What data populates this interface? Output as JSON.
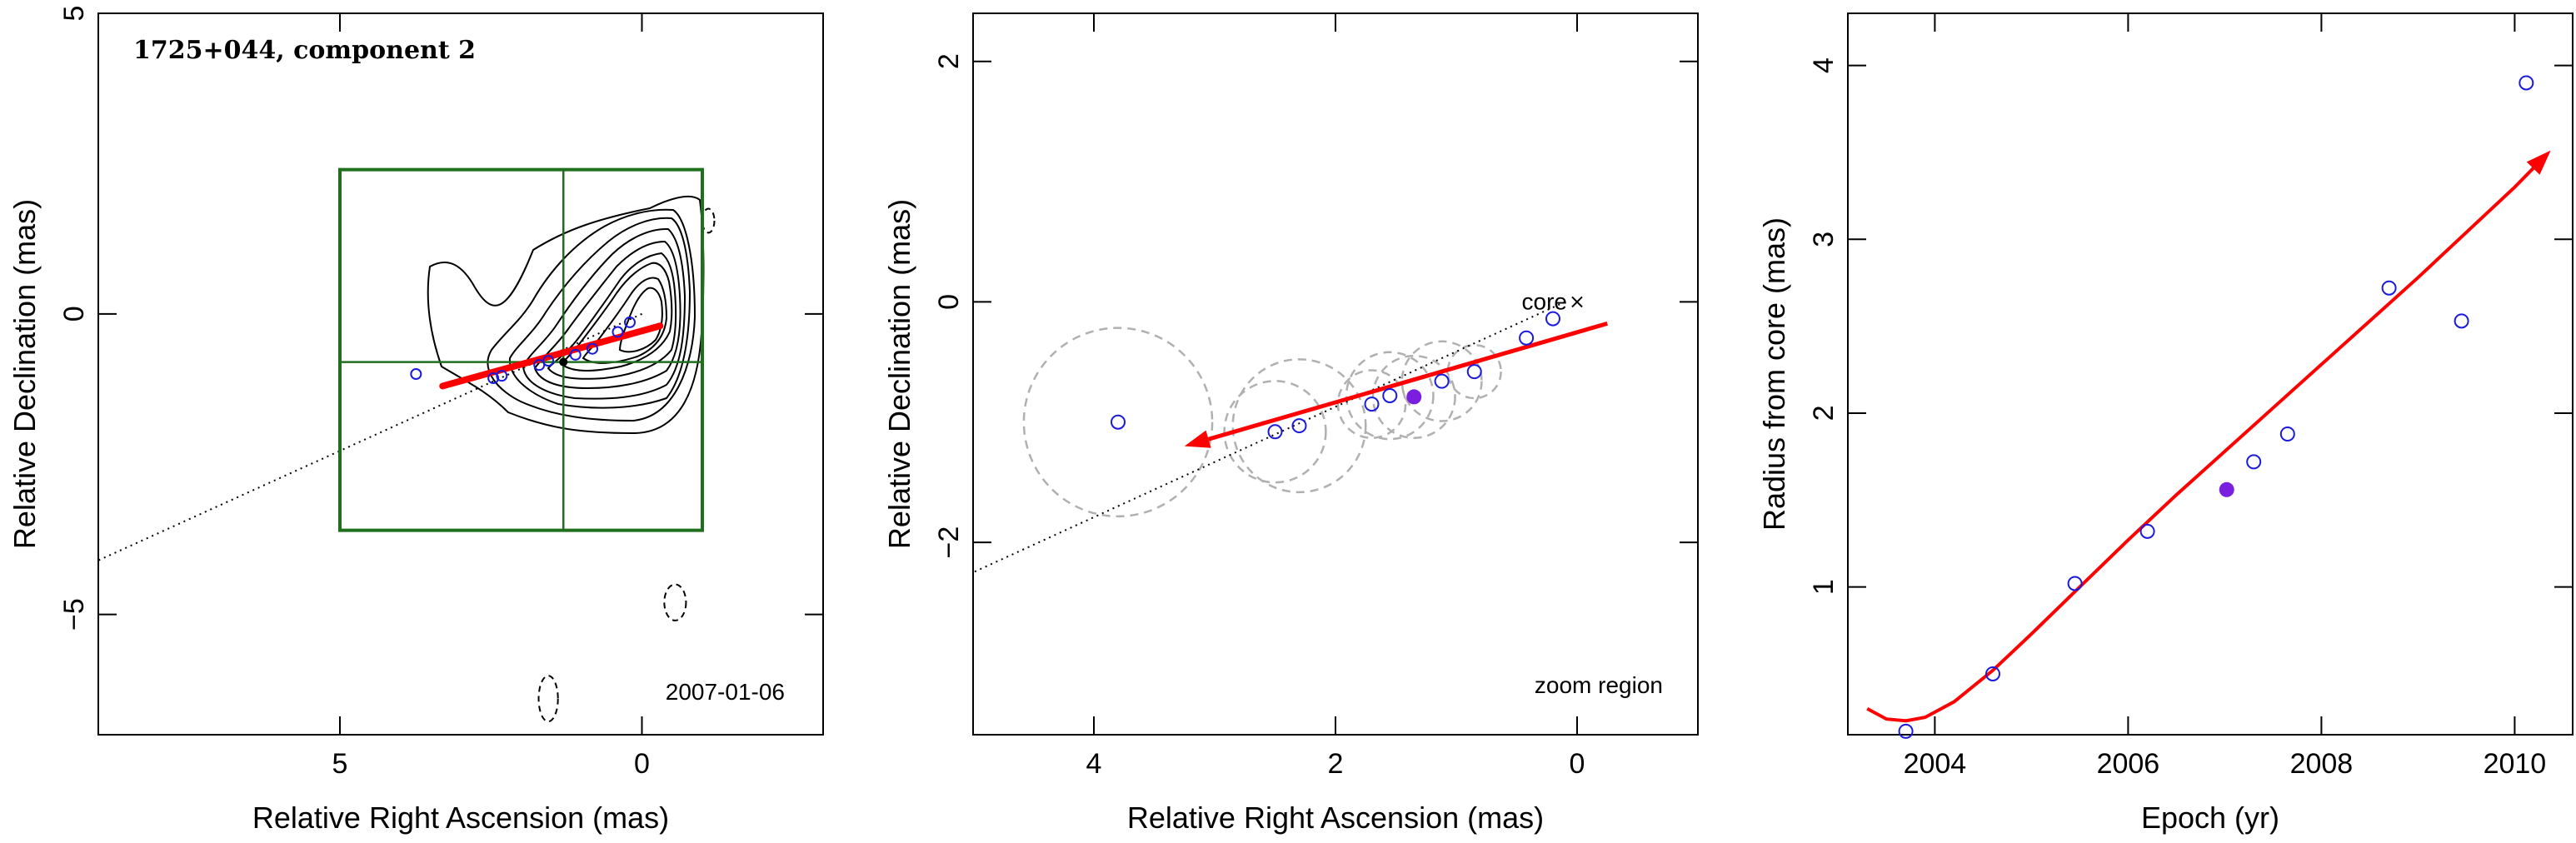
{
  "chart_data": [
    {
      "type": "scatter",
      "title": "1725+044, component 2",
      "annotation": "2007-01-06",
      "xlabel": "Relative Right Ascension (mas)",
      "ylabel": "Relative Declination (mas)",
      "xlim": [
        9,
        -3
      ],
      "ylim": [
        -7,
        5
      ],
      "x_ticks": [
        5,
        0
      ],
      "y_ticks": [
        5,
        0,
        -5
      ],
      "colors": {
        "points": "#1a1adc",
        "arrow": "#ff0000",
        "box": "#1f6f1f",
        "contours": "#000000",
        "trajectory": "#000000"
      },
      "component_positions": [
        {
          "x": 3.74,
          "y": -1.0
        },
        {
          "x": 2.46,
          "y": -1.07
        },
        {
          "x": 2.32,
          "y": -1.03
        },
        {
          "x": 1.7,
          "y": -0.85
        },
        {
          "x": 1.55,
          "y": -0.78
        },
        {
          "x": 1.1,
          "y": -0.68
        },
        {
          "x": 0.82,
          "y": -0.58
        },
        {
          "x": 0.4,
          "y": -0.3
        },
        {
          "x": 0.2,
          "y": -0.14
        }
      ],
      "current_position": {
        "x": 1.3,
        "y": -0.8
      },
      "arrow": {
        "from": {
          "x": -0.3,
          "y": -0.2
        },
        "to": {
          "x": 3.3,
          "y": -1.2
        }
      },
      "trajectory_line": {
        "from": {
          "x": 0,
          "y": 0
        },
        "to": {
          "x": 9,
          "y": -4.1
        }
      },
      "zoom_box": {
        "x_range": [
          5,
          -1
        ],
        "y_range": [
          -3.6,
          2.4
        ],
        "cross": {
          "x": 1.3,
          "y": -0.8
        }
      },
      "negative_contours": [
        {
          "x": -1.1,
          "y": 1.55,
          "rx": 0.1,
          "ry": 0.2
        },
        {
          "x": -0.55,
          "y": -4.8,
          "rx": 0.18,
          "ry": 0.3
        },
        {
          "x": 1.55,
          "y": -6.4,
          "rx": 0.16,
          "ry": 0.38
        }
      ]
    },
    {
      "type": "scatter",
      "annotation": "zoom region",
      "core_label": "core",
      "xlabel": "Relative Right Ascension (mas)",
      "ylabel": "Relative Declination (mas)",
      "xlim": [
        5,
        -1
      ],
      "ylim": [
        -3.6,
        2.4
      ],
      "x_ticks": [
        4,
        2,
        0
      ],
      "y_ticks": [
        2,
        0,
        -2
      ],
      "colors": {
        "points": "#1a1adc",
        "current": "#7a1fe0",
        "arrow": "#ff0000",
        "circles": "#b0b0b0"
      },
      "component_positions": [
        {
          "x": 3.8,
          "y": -1.0,
          "size": 0.78
        },
        {
          "x": 2.5,
          "y": -1.08,
          "size": 0.42
        },
        {
          "x": 2.3,
          "y": -1.03,
          "size": 0.55
        },
        {
          "x": 1.7,
          "y": -0.85,
          "size": 0.28
        },
        {
          "x": 1.55,
          "y": -0.78,
          "size": 0.36
        },
        {
          "x": 1.12,
          "y": -0.66,
          "size": 0.33
        },
        {
          "x": 0.85,
          "y": -0.58,
          "size": 0.22
        },
        {
          "x": 0.42,
          "y": -0.3,
          "size": 0.08
        },
        {
          "x": 0.2,
          "y": -0.14,
          "size": 0.05
        }
      ],
      "current_position": {
        "x": 1.35,
        "y": -0.79,
        "size": 0.34
      },
      "arrow": {
        "from": {
          "x": -0.25,
          "y": -0.18
        },
        "to": {
          "x": 3.25,
          "y": -1.2
        }
      },
      "trajectory_line": {
        "from": {
          "x": 0.1,
          "y": 0.0
        },
        "to": {
          "x": 5,
          "y": -2.25
        }
      },
      "core_marker": {
        "x": 0.0,
        "y": 0.0
      }
    },
    {
      "type": "scatter",
      "xlabel": "Epoch (yr)",
      "ylabel": "Radius from core (mas)",
      "xlim": [
        2003.1,
        2010.6
      ],
      "ylim": [
        0.15,
        4.3
      ],
      "x_ticks": [
        2004,
        2006,
        2008,
        2010
      ],
      "y_ticks": [
        1,
        2,
        3,
        4
      ],
      "colors": {
        "points": "#1a1adc",
        "current": "#7a1fe0",
        "fit": "#ff0000"
      },
      "points": [
        {
          "x": 2003.7,
          "y": 0.17
        },
        {
          "x": 2004.6,
          "y": 0.5
        },
        {
          "x": 2005.45,
          "y": 1.02
        },
        {
          "x": 2006.2,
          "y": 1.32
        },
        {
          "x": 2007.3,
          "y": 1.72
        },
        {
          "x": 2007.65,
          "y": 1.88
        },
        {
          "x": 2008.7,
          "y": 2.72
        },
        {
          "x": 2009.45,
          "y": 2.53
        },
        {
          "x": 2010.12,
          "y": 3.9
        }
      ],
      "current_point": {
        "x": 2007.02,
        "y": 1.56
      },
      "fit_curve": {
        "x": [
          2003.3,
          2003.5,
          2003.7,
          2003.9,
          2004.2,
          2004.6,
          2005.0,
          2005.5,
          2006.0,
          2006.5,
          2007.0,
          2007.5,
          2008.0,
          2008.5,
          2009.0,
          2009.5,
          2010.0,
          2010.3
        ],
        "y": [
          0.3,
          0.24,
          0.23,
          0.25,
          0.34,
          0.52,
          0.73,
          1.0,
          1.27,
          1.53,
          1.78,
          2.03,
          2.28,
          2.53,
          2.78,
          3.04,
          3.3,
          3.47
        ]
      }
    }
  ]
}
